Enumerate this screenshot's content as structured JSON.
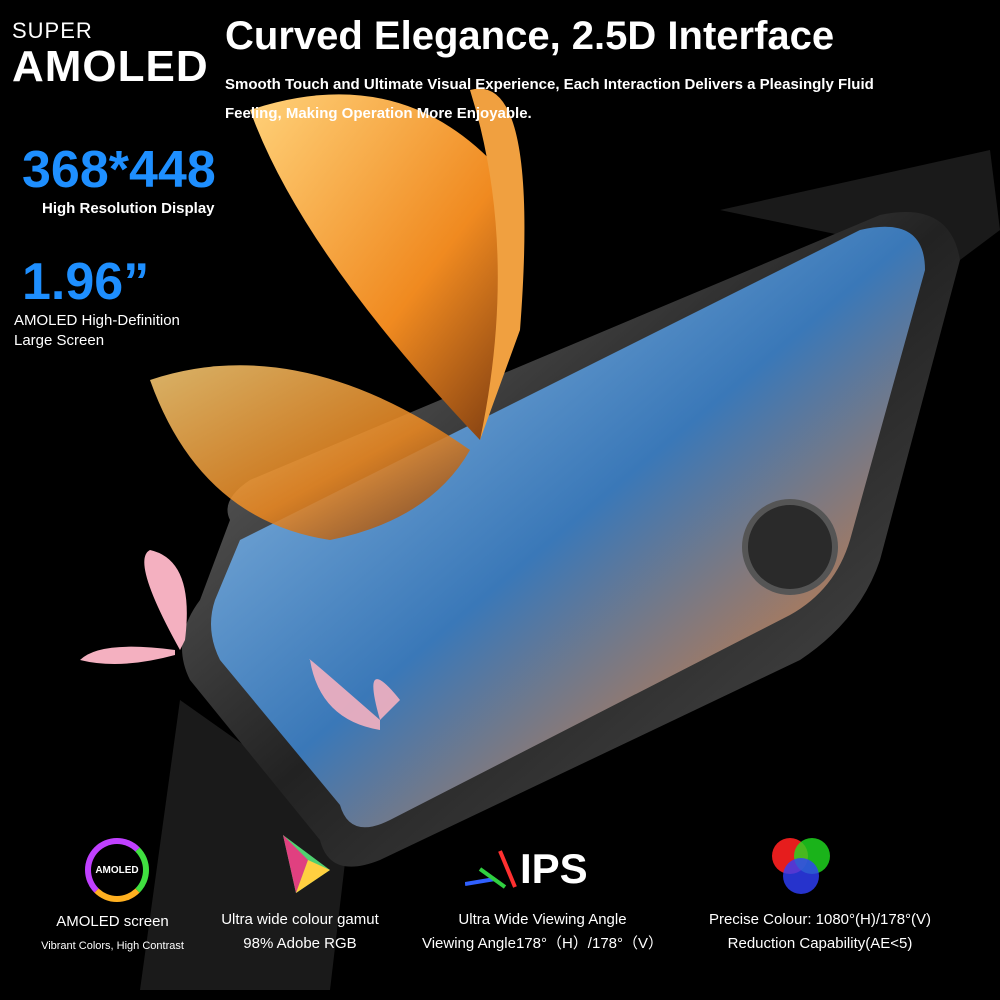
{
  "badge": {
    "super": "SUPER",
    "amoled": "AMOLED"
  },
  "header": {
    "title": "Curved Elegance, 2.5D Interface",
    "subtitle": "Smooth Touch and Ultimate Visual Experience, Each Interaction Delivers a Pleasingly Fluid Feeling, Making Operation More Enjoyable."
  },
  "specs": [
    {
      "value": "368*448",
      "label": "High Resolution Display"
    },
    {
      "value": "1.96”",
      "label": "AMOLED High-Definition Large Screen"
    }
  ],
  "features": [
    {
      "icon": "super-amoled-icon",
      "icon_text": "AMOLED",
      "title": "AMOLED screen",
      "detail": "Vibrant Colors, High Contrast"
    },
    {
      "icon": "color-gamut-triangle-icon",
      "title": "Ultra wide colour gamut",
      "detail": "98% Adobe RGB"
    },
    {
      "icon": "ips-icon",
      "icon_text": "IPS",
      "title": "Ultra Wide Viewing Angle",
      "detail": "Viewing Angle178°（H）/178°（V）"
    },
    {
      "icon": "rgb-circles-icon",
      "title": "Precise Colour: 1080°(H)/178°(V)",
      "detail": "Reduction Capability(AE<5)"
    }
  ],
  "colors": {
    "accent": "#1e8fff",
    "background": "#000000"
  }
}
